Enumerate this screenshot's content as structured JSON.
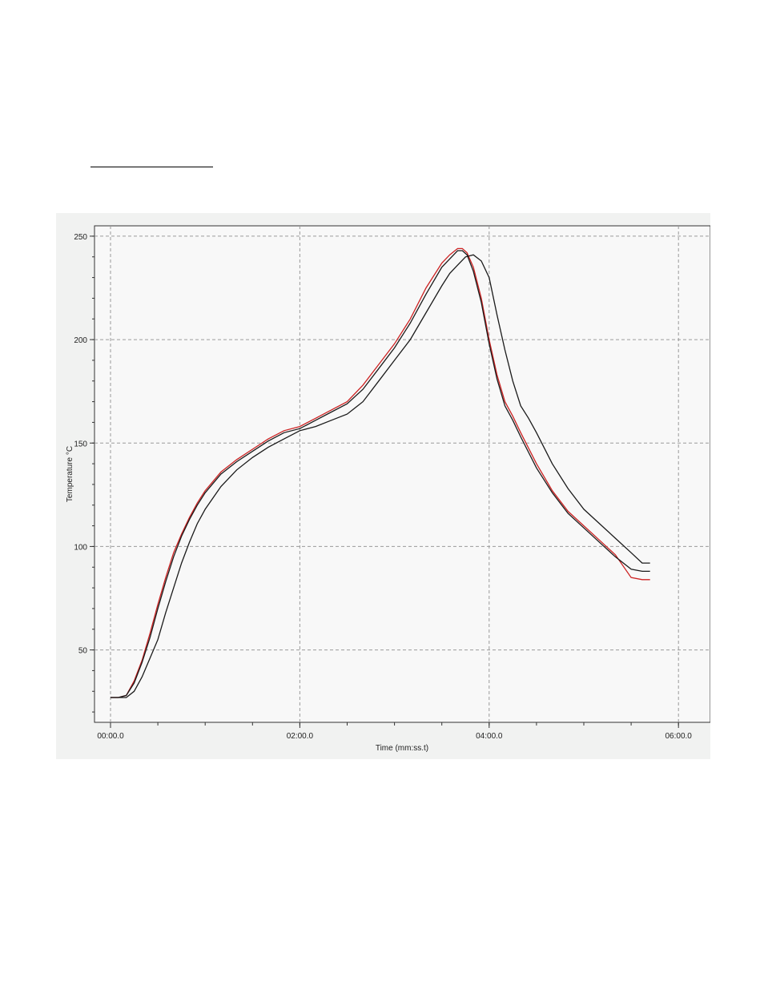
{
  "chart_data": {
    "type": "line",
    "title": "",
    "xlabel": "Time (mm:ss.t)",
    "ylabel": "Temperature °C",
    "xlim": [
      0,
      360
    ],
    "ylim": [
      15,
      255
    ],
    "x_ticks": [
      0,
      120,
      240,
      360
    ],
    "x_tick_labels": [
      "00:00.0",
      "02:00.0",
      "04:00.0",
      "06:00.0"
    ],
    "y_ticks": [
      50,
      100,
      150,
      200,
      250
    ],
    "y_tick_labels": [
      "50",
      "100",
      "150",
      "200",
      "250"
    ],
    "grid": true,
    "series": [
      {
        "color": "#cc2222",
        "x": [
          0,
          5,
          10,
          15,
          20,
          25,
          30,
          35,
          40,
          45,
          50,
          55,
          60,
          70,
          80,
          90,
          100,
          110,
          120,
          130,
          140,
          150,
          160,
          170,
          180,
          190,
          200,
          210,
          215,
          220,
          223,
          226,
          230,
          235,
          240,
          245,
          250,
          255,
          260,
          270,
          280,
          290,
          300,
          310,
          320,
          330,
          337,
          342
        ],
        "y": [
          27,
          27,
          28,
          35,
          45,
          58,
          72,
          85,
          97,
          106,
          114,
          121,
          127,
          136,
          142,
          147,
          152,
          156,
          158,
          162,
          166,
          170,
          178,
          188,
          198,
          210,
          225,
          237,
          241,
          244,
          244,
          242,
          235,
          220,
          200,
          183,
          170,
          163,
          155,
          140,
          127,
          117,
          110,
          103,
          96,
          85,
          84,
          84
        ]
      },
      {
        "color": "#1a1a1a",
        "x": [
          0,
          5,
          10,
          15,
          20,
          25,
          30,
          35,
          40,
          45,
          50,
          55,
          60,
          70,
          80,
          90,
          100,
          110,
          120,
          130,
          140,
          150,
          160,
          170,
          180,
          190,
          200,
          210,
          215,
          220,
          223,
          226,
          230,
          235,
          240,
          245,
          250,
          255,
          260,
          270,
          280,
          290,
          300,
          310,
          320,
          330,
          337,
          342
        ],
        "y": [
          27,
          27,
          28,
          34,
          44,
          56,
          70,
          83,
          95,
          105,
          113,
          120,
          126,
          135,
          141,
          146,
          151,
          155,
          157,
          161,
          165,
          169,
          176,
          186,
          196,
          208,
          222,
          235,
          239,
          243,
          243,
          241,
          233,
          218,
          198,
          181,
          168,
          161,
          153,
          138,
          126,
          116,
          109,
          102,
          95,
          89,
          88,
          88
        ]
      },
      {
        "color": "#1a1a1a",
        "x": [
          0,
          5,
          10,
          15,
          20,
          25,
          30,
          35,
          40,
          45,
          50,
          55,
          60,
          70,
          80,
          90,
          100,
          110,
          120,
          130,
          140,
          150,
          160,
          170,
          180,
          190,
          200,
          210,
          215,
          220,
          225,
          230,
          235,
          240,
          245,
          250,
          255,
          260,
          265,
          270,
          280,
          290,
          300,
          310,
          320,
          330,
          337,
          342
        ],
        "y": [
          27,
          27,
          27,
          30,
          37,
          46,
          55,
          68,
          80,
          92,
          102,
          111,
          118,
          129,
          137,
          143,
          148,
          152,
          156,
          158,
          161,
          164,
          170,
          180,
          190,
          200,
          213,
          226,
          232,
          236,
          240,
          241,
          238,
          230,
          212,
          195,
          180,
          168,
          162,
          155,
          140,
          128,
          118,
          111,
          104,
          97,
          92,
          92
        ]
      }
    ]
  }
}
